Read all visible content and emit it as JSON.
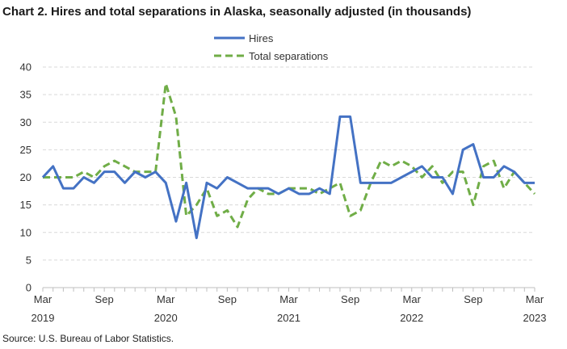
{
  "chart_data": {
    "type": "line",
    "title": "Chart 2. Hires and total separations in Alaska, seasonally adjusted (in thousands)",
    "source": "Source: U.S. Bureau of Labor Statistics.",
    "ylim": [
      0,
      40
    ],
    "yticks": [
      0,
      5,
      10,
      15,
      20,
      25,
      30,
      35,
      40
    ],
    "grid": true,
    "legend_position": "top-center",
    "x": [
      "2019-03",
      "2019-04",
      "2019-05",
      "2019-06",
      "2019-07",
      "2019-08",
      "2019-09",
      "2019-10",
      "2019-11",
      "2019-12",
      "2020-01",
      "2020-02",
      "2020-03",
      "2020-04",
      "2020-05",
      "2020-06",
      "2020-07",
      "2020-08",
      "2020-09",
      "2020-10",
      "2020-11",
      "2020-12",
      "2021-01",
      "2021-02",
      "2021-03",
      "2021-04",
      "2021-05",
      "2021-06",
      "2021-07",
      "2021-08",
      "2021-09",
      "2021-10",
      "2021-11",
      "2021-12",
      "2022-01",
      "2022-02",
      "2022-03",
      "2022-04",
      "2022-05",
      "2022-06",
      "2022-07",
      "2022-08",
      "2022-09",
      "2022-10",
      "2022-11",
      "2022-12",
      "2023-01",
      "2023-02",
      "2023-03"
    ],
    "x_tick_labels": [
      {
        "month": "Mar",
        "year": "2019",
        "index": 0
      },
      {
        "month": "Sep",
        "year": "",
        "index": 6
      },
      {
        "month": "Mar",
        "year": "2020",
        "index": 12
      },
      {
        "month": "Sep",
        "year": "",
        "index": 18
      },
      {
        "month": "Mar",
        "year": "2021",
        "index": 24
      },
      {
        "month": "Sep",
        "year": "",
        "index": 30
      },
      {
        "month": "Mar",
        "year": "2022",
        "index": 36
      },
      {
        "month": "Sep",
        "year": "",
        "index": 42
      },
      {
        "month": "Mar",
        "year": "2023",
        "index": 48
      }
    ],
    "series": [
      {
        "name": "Hires",
        "color": "#4472c4",
        "style": "solid",
        "values": [
          20,
          22,
          18,
          18,
          20,
          19,
          21,
          21,
          19,
          21,
          20,
          21,
          19,
          12,
          19,
          9,
          19,
          18,
          20,
          19,
          18,
          18,
          18,
          17,
          18,
          17,
          17,
          18,
          17,
          31,
          31,
          19,
          19,
          19,
          19,
          20,
          21,
          22,
          20,
          20,
          17,
          25,
          26,
          20,
          20,
          22,
          21,
          19,
          19
        ]
      },
      {
        "name": "Total separations",
        "color": "#70ad47",
        "style": "dashed",
        "values": [
          20,
          20,
          20,
          20,
          21,
          20,
          22,
          23,
          22,
          21,
          21,
          21,
          37,
          31,
          13,
          15,
          18,
          13,
          14,
          11,
          16,
          18,
          17,
          17,
          18,
          18,
          18,
          17,
          18,
          19,
          13,
          14,
          19,
          23,
          22,
          23,
          22,
          20,
          22,
          19,
          21,
          21,
          15,
          22,
          23,
          18,
          21,
          19,
          17
        ]
      }
    ]
  }
}
